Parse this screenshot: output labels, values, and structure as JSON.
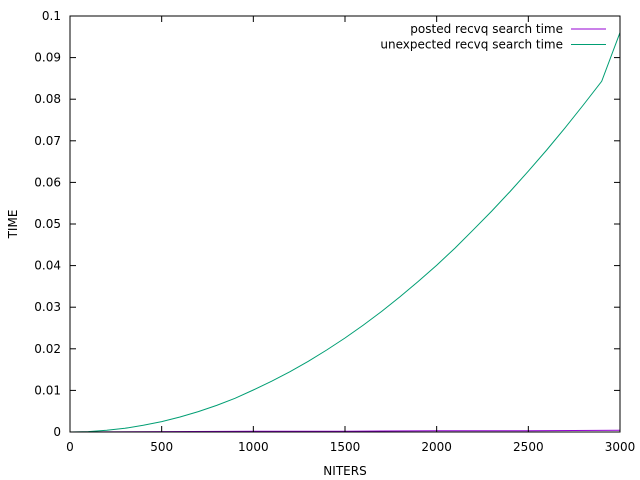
{
  "chart_data": {
    "type": "line",
    "title": "",
    "xlabel": "NITERS",
    "ylabel": "TIME",
    "xlim": [
      0,
      3000
    ],
    "ylim": [
      0,
      0.1
    ],
    "x_ticks": [
      "0",
      "500",
      "1000",
      "1500",
      "2000",
      "2500",
      "3000"
    ],
    "y_ticks": [
      "0",
      "0.01",
      "0.02",
      "0.03",
      "0.04",
      "0.05",
      "0.06",
      "0.07",
      "0.08",
      "0.09",
      "0.1"
    ],
    "x_tick_values": [
      0,
      500,
      1000,
      1500,
      2000,
      2500,
      3000
    ],
    "y_tick_values": [
      0,
      0.01,
      0.02,
      0.03,
      0.04,
      0.05,
      0.06,
      0.07,
      0.08,
      0.09,
      0.1
    ],
    "grid": false,
    "legend_position": "top-right",
    "series": [
      {
        "name": "posted recvq search time",
        "color": "#9400d3",
        "x": [
          0,
          500,
          1000,
          1500,
          2000,
          2500,
          3000
        ],
        "y": [
          0,
          0.0001,
          0.0002,
          0.0002,
          0.0003,
          0.0003,
          0.0004
        ]
      },
      {
        "name": "unexpected recvq search time",
        "color": "#009e73",
        "x": [
          0,
          100,
          200,
          300,
          400,
          500,
          600,
          700,
          800,
          900,
          1000,
          1100,
          1200,
          1300,
          1400,
          1500,
          1600,
          1700,
          1800,
          1900,
          2000,
          2100,
          2200,
          2300,
          2400,
          2500,
          2600,
          2700,
          2800,
          2900,
          3000
        ],
        "y": [
          0,
          0.0001,
          0.0004,
          0.0009,
          0.0016,
          0.0025,
          0.0036,
          0.0049,
          0.0064,
          0.0081,
          0.0101,
          0.0122,
          0.0145,
          0.017,
          0.0197,
          0.0226,
          0.0257,
          0.029,
          0.0325,
          0.0362,
          0.0401,
          0.0442,
          0.0486,
          0.0531,
          0.0578,
          0.0627,
          0.0678,
          0.0731,
          0.0786,
          0.0843,
          0.096
        ]
      }
    ]
  }
}
